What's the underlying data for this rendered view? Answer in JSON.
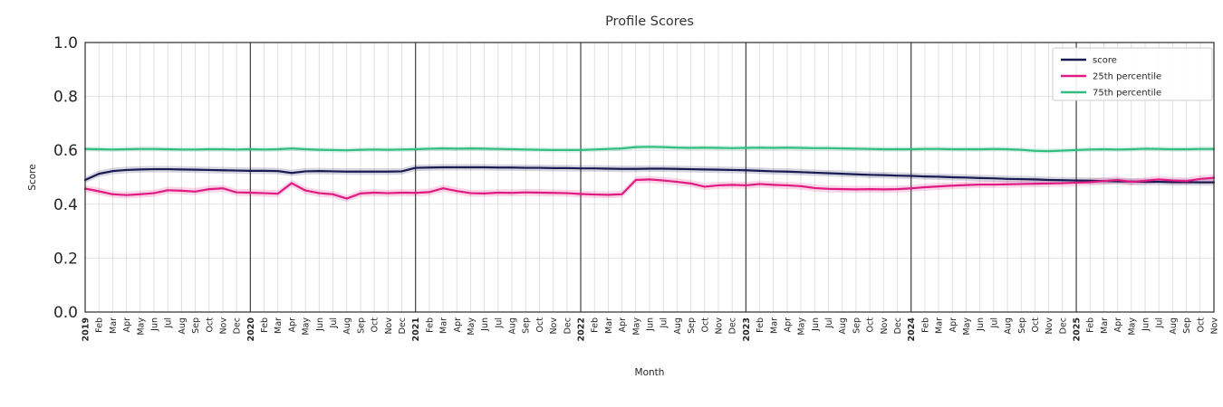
{
  "chart_data": {
    "type": "line",
    "title": "Profile Scores",
    "xlabel": "Month",
    "ylabel": "Score",
    "ylim": [
      0.0,
      1.0
    ],
    "yticks": [
      0.0,
      0.2,
      0.4,
      0.6,
      0.8,
      1.0
    ],
    "grid": true,
    "legend_position": "upper right",
    "categories": [
      "2019",
      "Feb",
      "Mar",
      "Apr",
      "May",
      "Jun",
      "Jul",
      "Aug",
      "Sep",
      "Oct",
      "Nov",
      "Dec",
      "2020",
      "Feb",
      "Mar",
      "Apr",
      "May",
      "Jun",
      "Jul",
      "Aug",
      "Sep",
      "Oct",
      "Nov",
      "Dec",
      "2021",
      "Feb",
      "Mar",
      "Apr",
      "May",
      "Jun",
      "Jul",
      "Aug",
      "Sep",
      "Oct",
      "Nov",
      "Dec",
      "2022",
      "Feb",
      "Mar",
      "Apr",
      "May",
      "Jun",
      "Jul",
      "Aug",
      "Sep",
      "Oct",
      "Nov",
      "Dec",
      "2023",
      "Feb",
      "Mar",
      "Apr",
      "May",
      "Jun",
      "Jul",
      "Aug",
      "Sep",
      "Oct",
      "Nov",
      "Dec",
      "2024",
      "Feb",
      "Mar",
      "Apr",
      "May",
      "Jun",
      "Jul",
      "Aug",
      "Sep",
      "Oct",
      "Nov",
      "Dec",
      "2025",
      "Feb",
      "Mar",
      "Apr",
      "May",
      "Jun",
      "Jul",
      "Aug",
      "Sep",
      "Oct",
      "Nov"
    ],
    "year_start_indices": [
      0,
      12,
      24,
      36,
      48,
      60,
      72
    ],
    "series": [
      {
        "name": "score",
        "color": "#1b1b54",
        "band_halfwidth": 0.012,
        "values": [
          0.49,
          0.513,
          0.523,
          0.527,
          0.529,
          0.53,
          0.53,
          0.529,
          0.528,
          0.527,
          0.526,
          0.525,
          0.524,
          0.524,
          0.523,
          0.516,
          0.522,
          0.523,
          0.522,
          0.521,
          0.521,
          0.521,
          0.521,
          0.522,
          0.535,
          0.536,
          0.537,
          0.537,
          0.537,
          0.537,
          0.536,
          0.536,
          0.535,
          0.535,
          0.534,
          0.534,
          0.533,
          0.533,
          0.532,
          0.531,
          0.531,
          0.532,
          0.532,
          0.531,
          0.53,
          0.529,
          0.528,
          0.527,
          0.526,
          0.524,
          0.522,
          0.521,
          0.519,
          0.517,
          0.515,
          0.513,
          0.511,
          0.509,
          0.508,
          0.506,
          0.505,
          0.503,
          0.502,
          0.5,
          0.499,
          0.497,
          0.496,
          0.494,
          0.493,
          0.492,
          0.49,
          0.489,
          0.488,
          0.487,
          0.486,
          0.485,
          0.484,
          0.483,
          0.483,
          0.482,
          0.482,
          0.481,
          0.481
        ]
      },
      {
        "name": "25th percentile",
        "color": "#e01a82",
        "band_halfwidth": 0.013,
        "values": [
          0.458,
          0.448,
          0.437,
          0.434,
          0.437,
          0.441,
          0.452,
          0.45,
          0.447,
          0.456,
          0.459,
          0.444,
          0.443,
          0.441,
          0.439,
          0.478,
          0.451,
          0.441,
          0.437,
          0.421,
          0.44,
          0.443,
          0.441,
          0.443,
          0.442,
          0.445,
          0.459,
          0.449,
          0.441,
          0.44,
          0.443,
          0.442,
          0.444,
          0.443,
          0.442,
          0.441,
          0.438,
          0.436,
          0.435,
          0.437,
          0.49,
          0.492,
          0.488,
          0.483,
          0.477,
          0.465,
          0.47,
          0.472,
          0.47,
          0.475,
          0.472,
          0.47,
          0.467,
          0.46,
          0.457,
          0.456,
          0.455,
          0.456,
          0.455,
          0.456,
          0.459,
          0.463,
          0.466,
          0.469,
          0.471,
          0.473,
          0.473,
          0.474,
          0.475,
          0.476,
          0.477,
          0.478,
          0.48,
          0.482,
          0.486,
          0.49,
          0.483,
          0.487,
          0.492,
          0.488,
          0.486,
          0.494,
          0.498
        ]
      },
      {
        "name": "75th percentile",
        "color": "#33bd80",
        "band_halfwidth": 0.009,
        "values": [
          0.605,
          0.604,
          0.603,
          0.604,
          0.605,
          0.605,
          0.604,
          0.603,
          0.603,
          0.604,
          0.604,
          0.603,
          0.604,
          0.603,
          0.604,
          0.607,
          0.604,
          0.602,
          0.601,
          0.6,
          0.602,
          0.603,
          0.602,
          0.603,
          0.604,
          0.606,
          0.607,
          0.606,
          0.607,
          0.606,
          0.605,
          0.604,
          0.603,
          0.602,
          0.601,
          0.601,
          0.601,
          0.603,
          0.605,
          0.607,
          0.612,
          0.613,
          0.612,
          0.61,
          0.609,
          0.61,
          0.609,
          0.608,
          0.609,
          0.61,
          0.609,
          0.61,
          0.609,
          0.608,
          0.608,
          0.607,
          0.606,
          0.605,
          0.604,
          0.604,
          0.604,
          0.605,
          0.605,
          0.604,
          0.604,
          0.604,
          0.605,
          0.604,
          0.602,
          0.598,
          0.597,
          0.599,
          0.601,
          0.603,
          0.604,
          0.603,
          0.604,
          0.606,
          0.605,
          0.604,
          0.604,
          0.605,
          0.605
        ]
      }
    ],
    "colors": {
      "grid_minor": "#dcdcdc",
      "grid_major_year": "#3c3c3c",
      "grid_horizontal": "#e2e2e2",
      "spine": "#2b2b2b",
      "tick_text": "#262626",
      "legend_border": "#cccccc"
    }
  }
}
